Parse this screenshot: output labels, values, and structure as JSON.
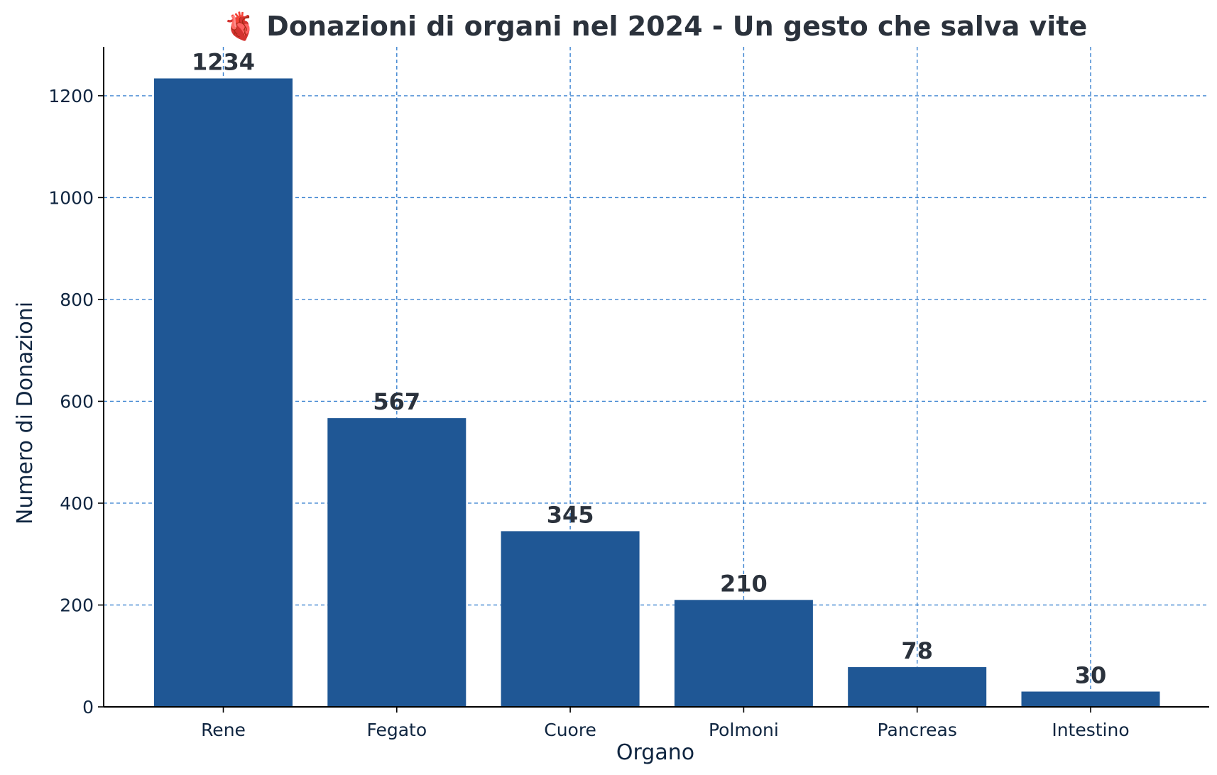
{
  "chart_data": {
    "type": "bar",
    "title": "🫀 Donazioni di organi nel 2024 - Un gesto che salva vite",
    "xlabel": "Organo",
    "ylabel": "Numero di Donazioni",
    "categories": [
      "Rene",
      "Fegato",
      "Cuore",
      "Polmoni",
      "Pancreas",
      "Intestino"
    ],
    "values": [
      1234,
      567,
      345,
      210,
      78,
      30
    ],
    "ylim": [
      0,
      1296
    ],
    "yticks": [
      0,
      200,
      400,
      600,
      800,
      1000,
      1200
    ],
    "grid": true,
    "bar_color": "#1f5795"
  }
}
